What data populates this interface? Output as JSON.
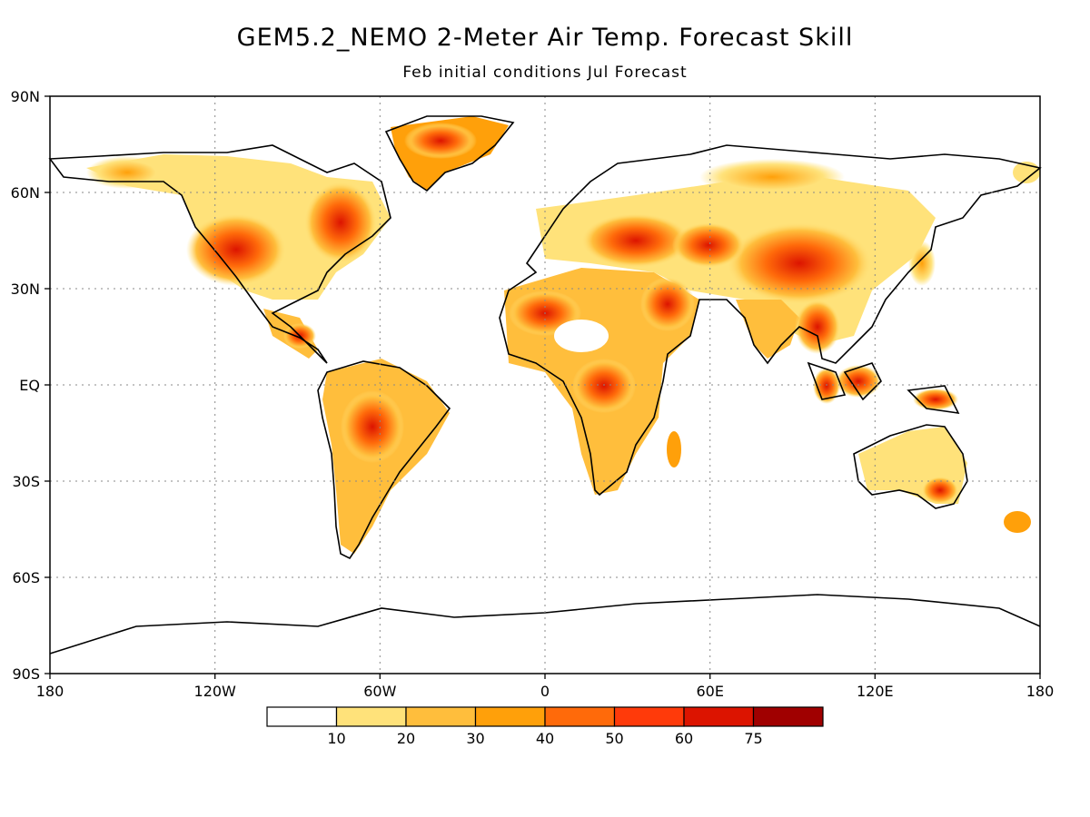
{
  "title": "GEM5.2_NEMO 2-Meter Air Temp. Forecast Skill",
  "subtitle": "Feb initial conditions  Jul Forecast",
  "lat_labels": [
    "90N",
    "60N",
    "30N",
    "EQ",
    "30S",
    "60S",
    "90S"
  ],
  "lon_labels": [
    "180",
    "120W",
    "60W",
    "0",
    "60E",
    "120E",
    "180"
  ],
  "legend": {
    "bins": [
      {
        "color": "#ffffff"
      },
      {
        "color": "#ffe27a",
        "label": "10"
      },
      {
        "color": "#ffbe3c",
        "label": "20"
      },
      {
        "color": "#ffa00a",
        "label": "30"
      },
      {
        "color": "#ff6a0a",
        "label": "40"
      },
      {
        "color": "#ff3a0a",
        "label": "50"
      },
      {
        "color": "#dc1400",
        "label": "60"
      },
      {
        "color": "#a00000",
        "label": "75"
      }
    ]
  }
}
